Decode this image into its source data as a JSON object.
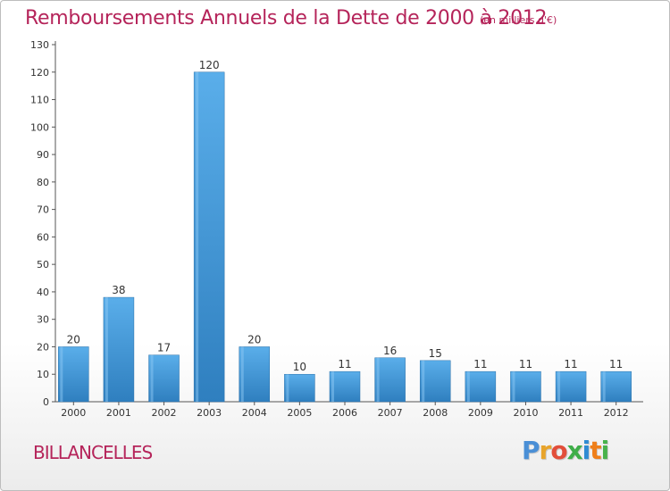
{
  "header": {
    "title": "Remboursements Annuels de la Dette de 2000 à 2012",
    "unit": "(en milliers d'€)"
  },
  "footer": {
    "commune": "BILLANCELLES",
    "logo_letters": [
      "P",
      "r",
      "o",
      "x",
      "i",
      "t",
      "i"
    ],
    "logo_colors": [
      "#4a8fd6",
      "#e8a42a",
      "#e24e3a",
      "#3fae49",
      "#2f8bd3",
      "#ef7f1a",
      "#48b24b"
    ]
  },
  "colors": {
    "bar_top": "#5aaeea",
    "bar_bottom": "#2f7fbf",
    "text": "#333333",
    "grid": "#d9d9d9",
    "accent": "#b5245a"
  },
  "chart_data": {
    "type": "bar",
    "title": "Remboursements Annuels de la Dette de 2000 à 2012",
    "categories": [
      "2000",
      "2001",
      "2002",
      "2003",
      "2004",
      "2005",
      "2006",
      "2007",
      "2008",
      "2009",
      "2010",
      "2011",
      "2012"
    ],
    "values": [
      20,
      38,
      17,
      120,
      20,
      10,
      11,
      16,
      15,
      11,
      11,
      11,
      11
    ],
    "ylim": [
      0,
      130
    ],
    "yticks": [
      0,
      10,
      20,
      30,
      40,
      50,
      60,
      70,
      80,
      90,
      100,
      110,
      120,
      130
    ],
    "grid": false,
    "data_labels": true
  }
}
